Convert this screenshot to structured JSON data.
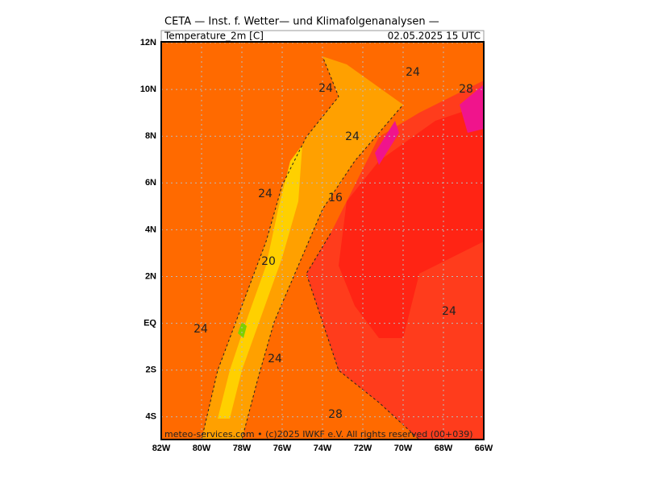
{
  "header": {
    "title": "CETA — Inst. f. Wetter— und Klimafolgenanalysen —",
    "field": "Temperature_2m [C]",
    "valid_time": "02.05.2025 15 UTC"
  },
  "latitude_labels": [
    "12N",
    "10N",
    "8N",
    "6N",
    "4N",
    "2N",
    "EQ",
    "2S",
    "4S"
  ],
  "longitude_labels": [
    "82W",
    "80W",
    "78W",
    "76W",
    "74W",
    "72W",
    "70W",
    "68W",
    "66W"
  ],
  "contour_labels": [
    24,
    24,
    24,
    28,
    24,
    16,
    20,
    24,
    24,
    24,
    28
  ],
  "footer": "meteo-services.com • (c)2025 IWKF e.V. All rights reserved (00+039)"
}
